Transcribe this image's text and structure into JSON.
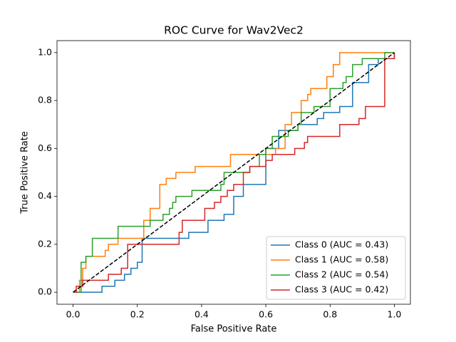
{
  "chart_data": {
    "type": "line",
    "title": "ROC Curve for Wav2Vec2",
    "xlabel": "False Positive Rate",
    "ylabel": "True Positive Rate",
    "xlim": [
      -0.05,
      1.05
    ],
    "ylim": [
      -0.05,
      1.05
    ],
    "xticks": [
      {
        "value": 0,
        "label": "0.0"
      },
      {
        "value": 0.2,
        "label": "0.2"
      },
      {
        "value": 0.4,
        "label": "0.4"
      },
      {
        "value": 0.6,
        "label": "0.6"
      },
      {
        "value": 0.8,
        "label": "0.8"
      },
      {
        "value": 1,
        "label": "1.0"
      }
    ],
    "yticks": [
      {
        "value": 0,
        "label": "0.0"
      },
      {
        "value": 0.2,
        "label": "0.2"
      },
      {
        "value": 0.4,
        "label": "0.4"
      },
      {
        "value": 0.6,
        "label": "0.6"
      },
      {
        "value": 0.8,
        "label": "0.8"
      },
      {
        "value": 1,
        "label": "1.0"
      }
    ],
    "legend": "lower right",
    "diagonal": {
      "x": [
        0,
        1
      ],
      "values": [
        0,
        1
      ],
      "color": "#000000",
      "dashed": true
    },
    "series": [
      {
        "name": "Class 0 (AUC = 0.43)",
        "color": "#1f77b4",
        "x": [
          0,
          0.02,
          0.09,
          0.09,
          0.13,
          0.13,
          0.16,
          0.16,
          0.18,
          0.18,
          0.2,
          0.2,
          0.215,
          0.215,
          0.36,
          0.36,
          0.42,
          0.42,
          0.47,
          0.47,
          0.5,
          0.5,
          0.53,
          0.53,
          0.6,
          0.6,
          0.64,
          0.64,
          0.7,
          0.7,
          0.76,
          0.76,
          0.78,
          0.78,
          0.83,
          0.83,
          0.87,
          0.87,
          0.92,
          0.92,
          0.95,
          0.95,
          1.0,
          1.0
        ],
        "values": [
          0,
          0,
          0,
          0.025,
          0.025,
          0.05,
          0.05,
          0.075,
          0.075,
          0.1,
          0.1,
          0.125,
          0.125,
          0.225,
          0.225,
          0.25,
          0.25,
          0.3,
          0.3,
          0.325,
          0.325,
          0.4,
          0.4,
          0.45,
          0.45,
          0.6,
          0.6,
          0.675,
          0.675,
          0.7,
          0.7,
          0.725,
          0.725,
          0.75,
          0.75,
          0.775,
          0.775,
          0.875,
          0.875,
          0.95,
          0.95,
          0.975,
          0.975,
          1.0
        ]
      },
      {
        "name": "Class 1 (AUC = 0.58)",
        "color": "#ff7f0e",
        "x": [
          0,
          0.02,
          0.02,
          0.03,
          0.03,
          0.04,
          0.04,
          0.1,
          0.1,
          0.11,
          0.11,
          0.14,
          0.14,
          0.22,
          0.22,
          0.24,
          0.24,
          0.27,
          0.27,
          0.29,
          0.29,
          0.32,
          0.32,
          0.38,
          0.38,
          0.49,
          0.49,
          0.63,
          0.63,
          0.66,
          0.66,
          0.68,
          0.68,
          0.71,
          0.71,
          0.73,
          0.73,
          0.74,
          0.74,
          0.79,
          0.79,
          0.81,
          0.81,
          0.83,
          0.83,
          1.0
        ],
        "values": [
          0,
          0,
          0.05,
          0.05,
          0.1,
          0.1,
          0.15,
          0.15,
          0.175,
          0.175,
          0.2,
          0.2,
          0.225,
          0.225,
          0.3,
          0.3,
          0.35,
          0.35,
          0.45,
          0.45,
          0.475,
          0.475,
          0.5,
          0.5,
          0.525,
          0.525,
          0.575,
          0.575,
          0.6,
          0.6,
          0.7,
          0.7,
          0.75,
          0.75,
          0.8,
          0.8,
          0.825,
          0.825,
          0.85,
          0.85,
          0.9,
          0.9,
          0.95,
          0.95,
          1.0,
          1.0
        ]
      },
      {
        "name": "Class 2 (AUC = 0.54)",
        "color": "#2ca02c",
        "x": [
          0,
          0.025,
          0.025,
          0.04,
          0.04,
          0.06,
          0.06,
          0.14,
          0.14,
          0.24,
          0.24,
          0.28,
          0.28,
          0.3,
          0.3,
          0.31,
          0.31,
          0.32,
          0.32,
          0.37,
          0.37,
          0.46,
          0.46,
          0.47,
          0.47,
          0.55,
          0.55,
          0.58,
          0.58,
          0.6,
          0.6,
          0.62,
          0.62,
          0.67,
          0.67,
          0.7,
          0.7,
          0.71,
          0.71,
          0.75,
          0.75,
          0.8,
          0.8,
          0.84,
          0.84,
          0.85,
          0.85,
          0.87,
          0.87,
          0.9,
          0.9,
          0.97,
          0.97,
          1.0
        ],
        "values": [
          0,
          0,
          0.125,
          0.125,
          0.15,
          0.15,
          0.225,
          0.225,
          0.275,
          0.275,
          0.3,
          0.3,
          0.325,
          0.325,
          0.35,
          0.35,
          0.375,
          0.375,
          0.4,
          0.4,
          0.425,
          0.425,
          0.45,
          0.45,
          0.5,
          0.5,
          0.525,
          0.525,
          0.575,
          0.575,
          0.6,
          0.6,
          0.65,
          0.65,
          0.675,
          0.675,
          0.7,
          0.7,
          0.75,
          0.75,
          0.775,
          0.775,
          0.85,
          0.85,
          0.875,
          0.875,
          0.9,
          0.9,
          0.95,
          0.95,
          0.975,
          0.975,
          1.0,
          1.0
        ]
      },
      {
        "name": "Class 3 (AUC = 0.42)",
        "color": "#d62728",
        "x": [
          0,
          0.01,
          0.01,
          0.03,
          0.03,
          0.11,
          0.11,
          0.15,
          0.15,
          0.17,
          0.17,
          0.33,
          0.33,
          0.34,
          0.34,
          0.41,
          0.41,
          0.44,
          0.44,
          0.46,
          0.46,
          0.48,
          0.48,
          0.5,
          0.5,
          0.53,
          0.53,
          0.55,
          0.55,
          0.6,
          0.6,
          0.62,
          0.62,
          0.69,
          0.69,
          0.72,
          0.72,
          0.73,
          0.73,
          0.83,
          0.83,
          0.89,
          0.89,
          0.91,
          0.91,
          0.97,
          0.97,
          1.0,
          1.0
        ],
        "values": [
          0,
          0,
          0.025,
          0.025,
          0.05,
          0.05,
          0.075,
          0.075,
          0.1,
          0.1,
          0.2,
          0.2,
          0.25,
          0.25,
          0.3,
          0.3,
          0.35,
          0.35,
          0.375,
          0.375,
          0.4,
          0.4,
          0.425,
          0.425,
          0.45,
          0.45,
          0.5,
          0.5,
          0.525,
          0.525,
          0.55,
          0.55,
          0.575,
          0.575,
          0.6,
          0.6,
          0.625,
          0.625,
          0.65,
          0.65,
          0.7,
          0.7,
          0.725,
          0.725,
          0.775,
          0.775,
          0.975,
          0.975,
          1.0
        ]
      }
    ]
  }
}
